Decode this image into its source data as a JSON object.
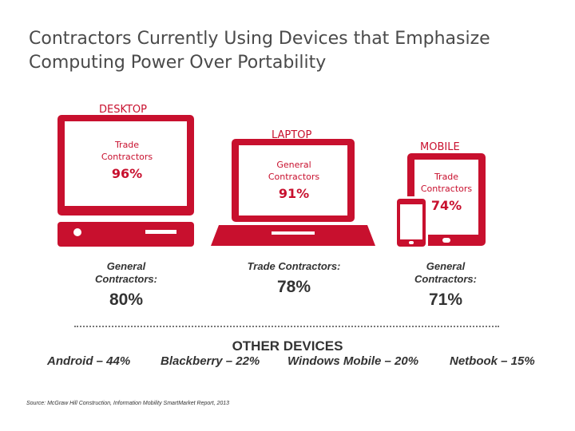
{
  "title": {
    "line1": "Contractors Currently Using Devices that Emphasize",
    "line2": "Computing Power Over Portability"
  },
  "colors": {
    "accent": "#c8102e",
    "text": "#333333"
  },
  "chart_data": {
    "type": "table",
    "devices": [
      {
        "label": "DESKTOP",
        "screen_group": "Trade Contractors",
        "screen_value": 96,
        "screen_text": "96%",
        "below_group": "General Contractors:",
        "below_value": 80,
        "below_text": "80%"
      },
      {
        "label": "LAPTOP",
        "screen_group": "General Contractors",
        "screen_value": 91,
        "screen_text": "91%",
        "below_group": "Trade Contractors:",
        "below_value": 78,
        "below_text": "78%"
      },
      {
        "label": "MOBILE",
        "screen_group": "Trade Contractors",
        "screen_value": 74,
        "screen_text": "74%",
        "below_group": "General Contractors:",
        "below_value": 71,
        "below_text": "71%"
      }
    ],
    "other_devices": {
      "heading": "OTHER DEVICES",
      "items": [
        {
          "name": "Android",
          "value": 44,
          "text": "Android – 44%"
        },
        {
          "name": "Blackberry",
          "value": 22,
          "text": "Blackberry – 22%"
        },
        {
          "name": "Windows Mobile",
          "value": 20,
          "text": "Windows Mobile – 20%"
        },
        {
          "name": "Netbook",
          "value": 15,
          "text": "Netbook – 15%"
        }
      ]
    },
    "source": "Source: McGraw Hill Construction, Information Mobility SmartMarket Report, 2013"
  }
}
